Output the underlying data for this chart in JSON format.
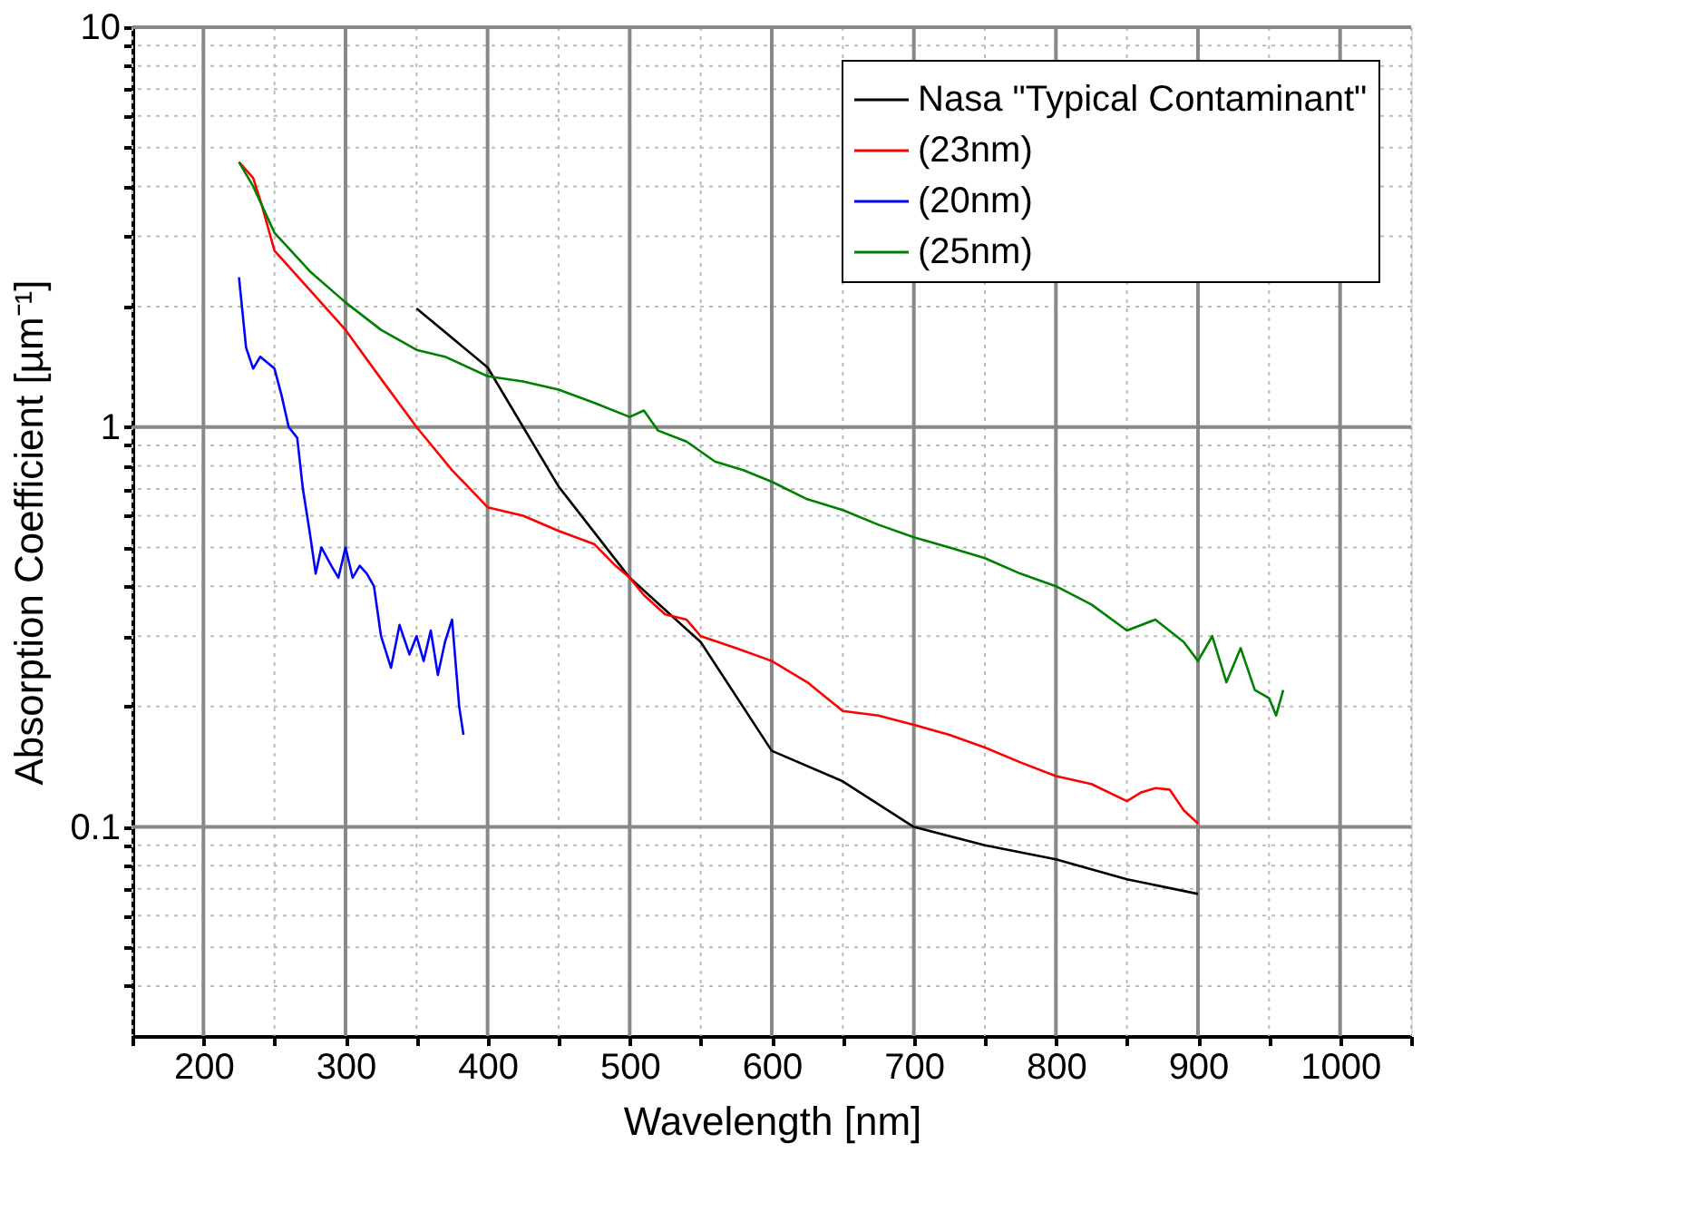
{
  "chart_data": {
    "type": "line",
    "xlabel": "Wavelength [nm]",
    "ylabel": "Absorption Coefficient [µm⁻¹]",
    "xlim": [
      150,
      1050
    ],
    "ylim": [
      0.03,
      10
    ],
    "log": "y",
    "grid": true,
    "legend": "top right",
    "line_style": "solid",
    "marker": "none",
    "xticks": [
      {
        "value": 150,
        "label": null
      },
      200,
      {
        "value": 250,
        "label": null
      },
      300,
      {
        "value": 350,
        "label": null
      },
      400,
      {
        "value": 450,
        "label": null
      },
      500,
      {
        "value": 550,
        "label": null
      },
      600,
      {
        "value": 650,
        "label": null
      },
      700,
      {
        "value": 750,
        "label": null
      },
      800,
      {
        "value": 850,
        "label": null
      },
      900,
      {
        "value": 950,
        "label": null
      },
      1000,
      {
        "value": 1050,
        "label": null
      }
    ],
    "yticks": [
      {
        "value": 0.04,
        "label": null
      },
      {
        "value": 0.05,
        "label": null
      },
      {
        "value": 0.06,
        "label": null
      },
      {
        "value": 0.07,
        "label": null
      },
      {
        "value": 0.08,
        "label": null
      },
      {
        "value": 0.09,
        "label": null
      },
      0.1,
      {
        "value": 0.2,
        "label": null
      },
      {
        "value": 0.3,
        "label": null
      },
      {
        "value": 0.4,
        "label": null
      },
      {
        "value": 0.5,
        "label": null
      },
      {
        "value": 0.6,
        "label": null
      },
      {
        "value": 0.7,
        "label": null
      },
      {
        "value": 0.8,
        "label": null
      },
      {
        "value": 0.9,
        "label": null
      },
      1,
      {
        "value": 2,
        "label": null
      },
      {
        "value": 3,
        "label": null
      },
      {
        "value": 4,
        "label": null
      },
      {
        "value": 5,
        "label": null
      },
      {
        "value": 6,
        "label": null
      },
      {
        "value": 7,
        "label": null
      },
      {
        "value": 8,
        "label": null
      },
      {
        "value": 9,
        "label": null
      },
      10
    ],
    "series": [
      {
        "name": "Nasa \"Typical Contaminant\"",
        "color": "#000000",
        "x": [
          350,
          400,
          450,
          500,
          550,
          600,
          650,
          700,
          750,
          800,
          850,
          900
        ],
        "values": [
          1.98,
          1.41,
          0.71,
          0.42,
          0.29,
          0.155,
          0.13,
          0.1,
          0.09,
          0.083,
          0.074,
          0.068
        ]
      },
      {
        "name": "(23nm)",
        "color": "#ff0000",
        "x": [
          225,
          235,
          241,
          250,
          275,
          300,
          325,
          350,
          375,
          400,
          425,
          450,
          475,
          490,
          500,
          510,
          525,
          540,
          550,
          575,
          600,
          625,
          650,
          675,
          700,
          725,
          750,
          775,
          800,
          825,
          850,
          860,
          870,
          880,
          890,
          900
        ],
        "values": [
          4.6,
          4.2,
          3.6,
          2.76,
          2.2,
          1.75,
          1.32,
          1.0,
          0.78,
          0.63,
          0.6,
          0.55,
          0.51,
          0.45,
          0.42,
          0.38,
          0.34,
          0.33,
          0.3,
          0.28,
          0.26,
          0.23,
          0.195,
          0.19,
          0.18,
          0.17,
          0.158,
          0.145,
          0.134,
          0.128,
          0.116,
          0.122,
          0.125,
          0.124,
          0.11,
          0.102
        ]
      },
      {
        "name": "(20nm)",
        "color": "#0000ff",
        "x": [
          225,
          230,
          235,
          240,
          245,
          250,
          255,
          260,
          266,
          270,
          275,
          279,
          283,
          290,
          295,
          300,
          305,
          310,
          315,
          320,
          325,
          332,
          338,
          345,
          350,
          355,
          360,
          365,
          370,
          375,
          380,
          383
        ],
        "values": [
          2.37,
          1.58,
          1.4,
          1.5,
          1.45,
          1.4,
          1.2,
          1.0,
          0.94,
          0.7,
          0.54,
          0.43,
          0.5,
          0.45,
          0.42,
          0.5,
          0.42,
          0.45,
          0.43,
          0.4,
          0.3,
          0.25,
          0.32,
          0.27,
          0.3,
          0.26,
          0.31,
          0.24,
          0.29,
          0.33,
          0.2,
          0.17
        ]
      },
      {
        "name": "(25nm)",
        "color": "#008000",
        "x": [
          225,
          235,
          250,
          275,
          300,
          325,
          350,
          370,
          400,
          425,
          450,
          475,
          500,
          510,
          520,
          540,
          560,
          580,
          600,
          625,
          650,
          675,
          700,
          725,
          750,
          775,
          800,
          825,
          850,
          870,
          890,
          900,
          910,
          920,
          930,
          940,
          950,
          955,
          960
        ],
        "values": [
          4.6,
          4.0,
          3.06,
          2.45,
          2.05,
          1.75,
          1.56,
          1.5,
          1.34,
          1.3,
          1.24,
          1.15,
          1.06,
          1.1,
          0.98,
          0.92,
          0.82,
          0.78,
          0.73,
          0.66,
          0.62,
          0.57,
          0.53,
          0.5,
          0.47,
          0.43,
          0.4,
          0.36,
          0.31,
          0.33,
          0.29,
          0.26,
          0.3,
          0.23,
          0.28,
          0.22,
          0.21,
          0.19,
          0.22
        ]
      }
    ]
  }
}
